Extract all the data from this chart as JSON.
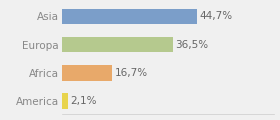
{
  "categories": [
    "America",
    "Africa",
    "Europa",
    "Asia"
  ],
  "values": [
    2.1,
    16.7,
    36.5,
    44.7
  ],
  "labels": [
    "2,1%",
    "16,7%",
    "36,5%",
    "44,7%"
  ],
  "bar_colors": [
    "#e8d44d",
    "#e8a96a",
    "#b5c98e",
    "#7b9ec9"
  ],
  "background_color": "#f0f0f0",
  "xlim": [
    0,
    70
  ],
  "label_fontsize": 7.5,
  "tick_fontsize": 7.5,
  "tick_color": "#888888",
  "bar_height": 0.55
}
